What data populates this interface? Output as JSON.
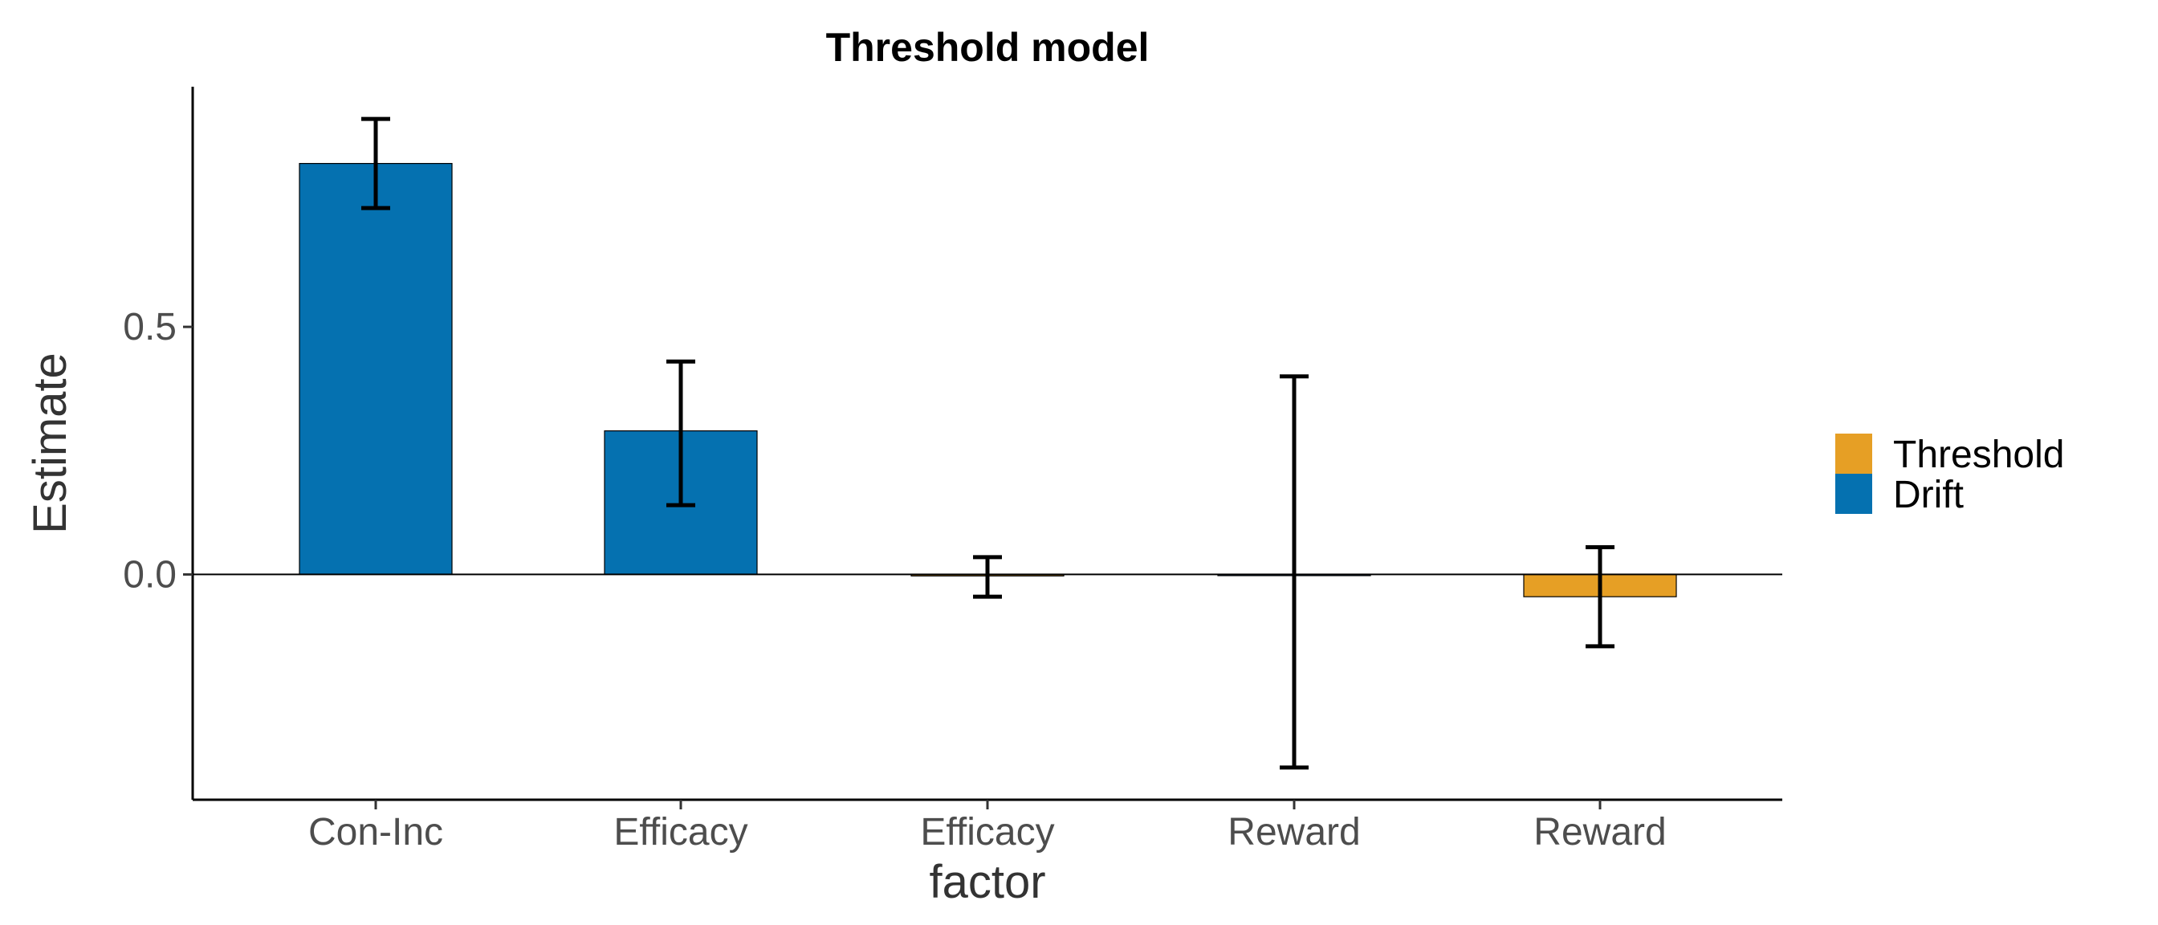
{
  "chart_data": {
    "type": "bar",
    "title": "Threshold model",
    "xlabel": "factor",
    "ylabel": "Estimate",
    "ylim": [
      -0.455,
      0.985
    ],
    "yticks": [
      0.0,
      0.5
    ],
    "ytick_labels": [
      "0.0",
      "0.5"
    ],
    "categories": [
      "Con-Inc",
      "Efficacy",
      "Efficacy",
      "Reward",
      "Reward"
    ],
    "bars": [
      {
        "category": "Con-Inc",
        "series": "Drift",
        "value": 0.83,
        "ci_low": 0.74,
        "ci_high": 0.92
      },
      {
        "category": "Efficacy",
        "series": "Drift",
        "value": 0.29,
        "ci_low": 0.14,
        "ci_high": 0.43
      },
      {
        "category": "Efficacy",
        "series": "Threshold",
        "value": -0.003,
        "ci_low": -0.045,
        "ci_high": 0.035
      },
      {
        "category": "Reward",
        "series": "Drift",
        "value": 0.0,
        "ci_low": -0.39,
        "ci_high": 0.4
      },
      {
        "category": "Reward",
        "series": "Threshold",
        "value": -0.045,
        "ci_low": -0.145,
        "ci_high": 0.055
      }
    ],
    "legend": {
      "position": "right",
      "entries": [
        {
          "name": "Threshold",
          "color": "#E69F25"
        },
        {
          "name": "Drift",
          "color": "#0571B0"
        }
      ]
    },
    "grid": false
  }
}
